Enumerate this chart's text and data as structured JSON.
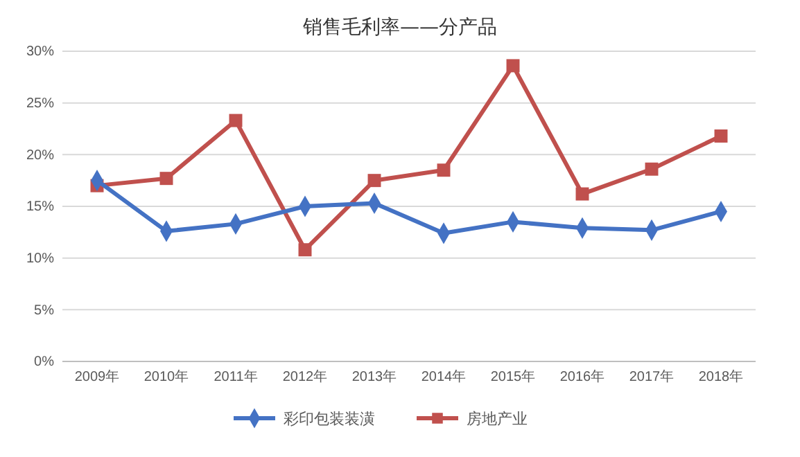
{
  "chart_data": {
    "type": "line",
    "title": "销售毛利率——分产品",
    "categories": [
      "2009年",
      "2010年",
      "2011年",
      "2012年",
      "2013年",
      "2014年",
      "2015年",
      "2016年",
      "2017年",
      "2018年"
    ],
    "series": [
      {
        "name": "彩印包装装潢",
        "color": "#4472c4",
        "marker": "diamond",
        "values": [
          17.5,
          12.6,
          13.3,
          15.0,
          15.3,
          12.4,
          13.5,
          12.9,
          12.7,
          14.5
        ]
      },
      {
        "name": "房地产业",
        "color": "#c0504d",
        "marker": "square",
        "values": [
          17.0,
          17.7,
          23.3,
          10.8,
          17.5,
          18.5,
          28.6,
          16.2,
          18.6,
          21.8
        ]
      }
    ],
    "ylim": [
      0,
      30
    ],
    "yticks": [
      {
        "value": 0,
        "label": "0%"
      },
      {
        "value": 5,
        "label": "5%"
      },
      {
        "value": 10,
        "label": "10%"
      },
      {
        "value": 15,
        "label": "15%"
      },
      {
        "value": 20,
        "label": "20%"
      },
      {
        "value": 25,
        "label": "25%"
      },
      {
        "value": 30,
        "label": "30%"
      }
    ],
    "grid": "y",
    "legend": "bottom",
    "line_style": "solid"
  }
}
